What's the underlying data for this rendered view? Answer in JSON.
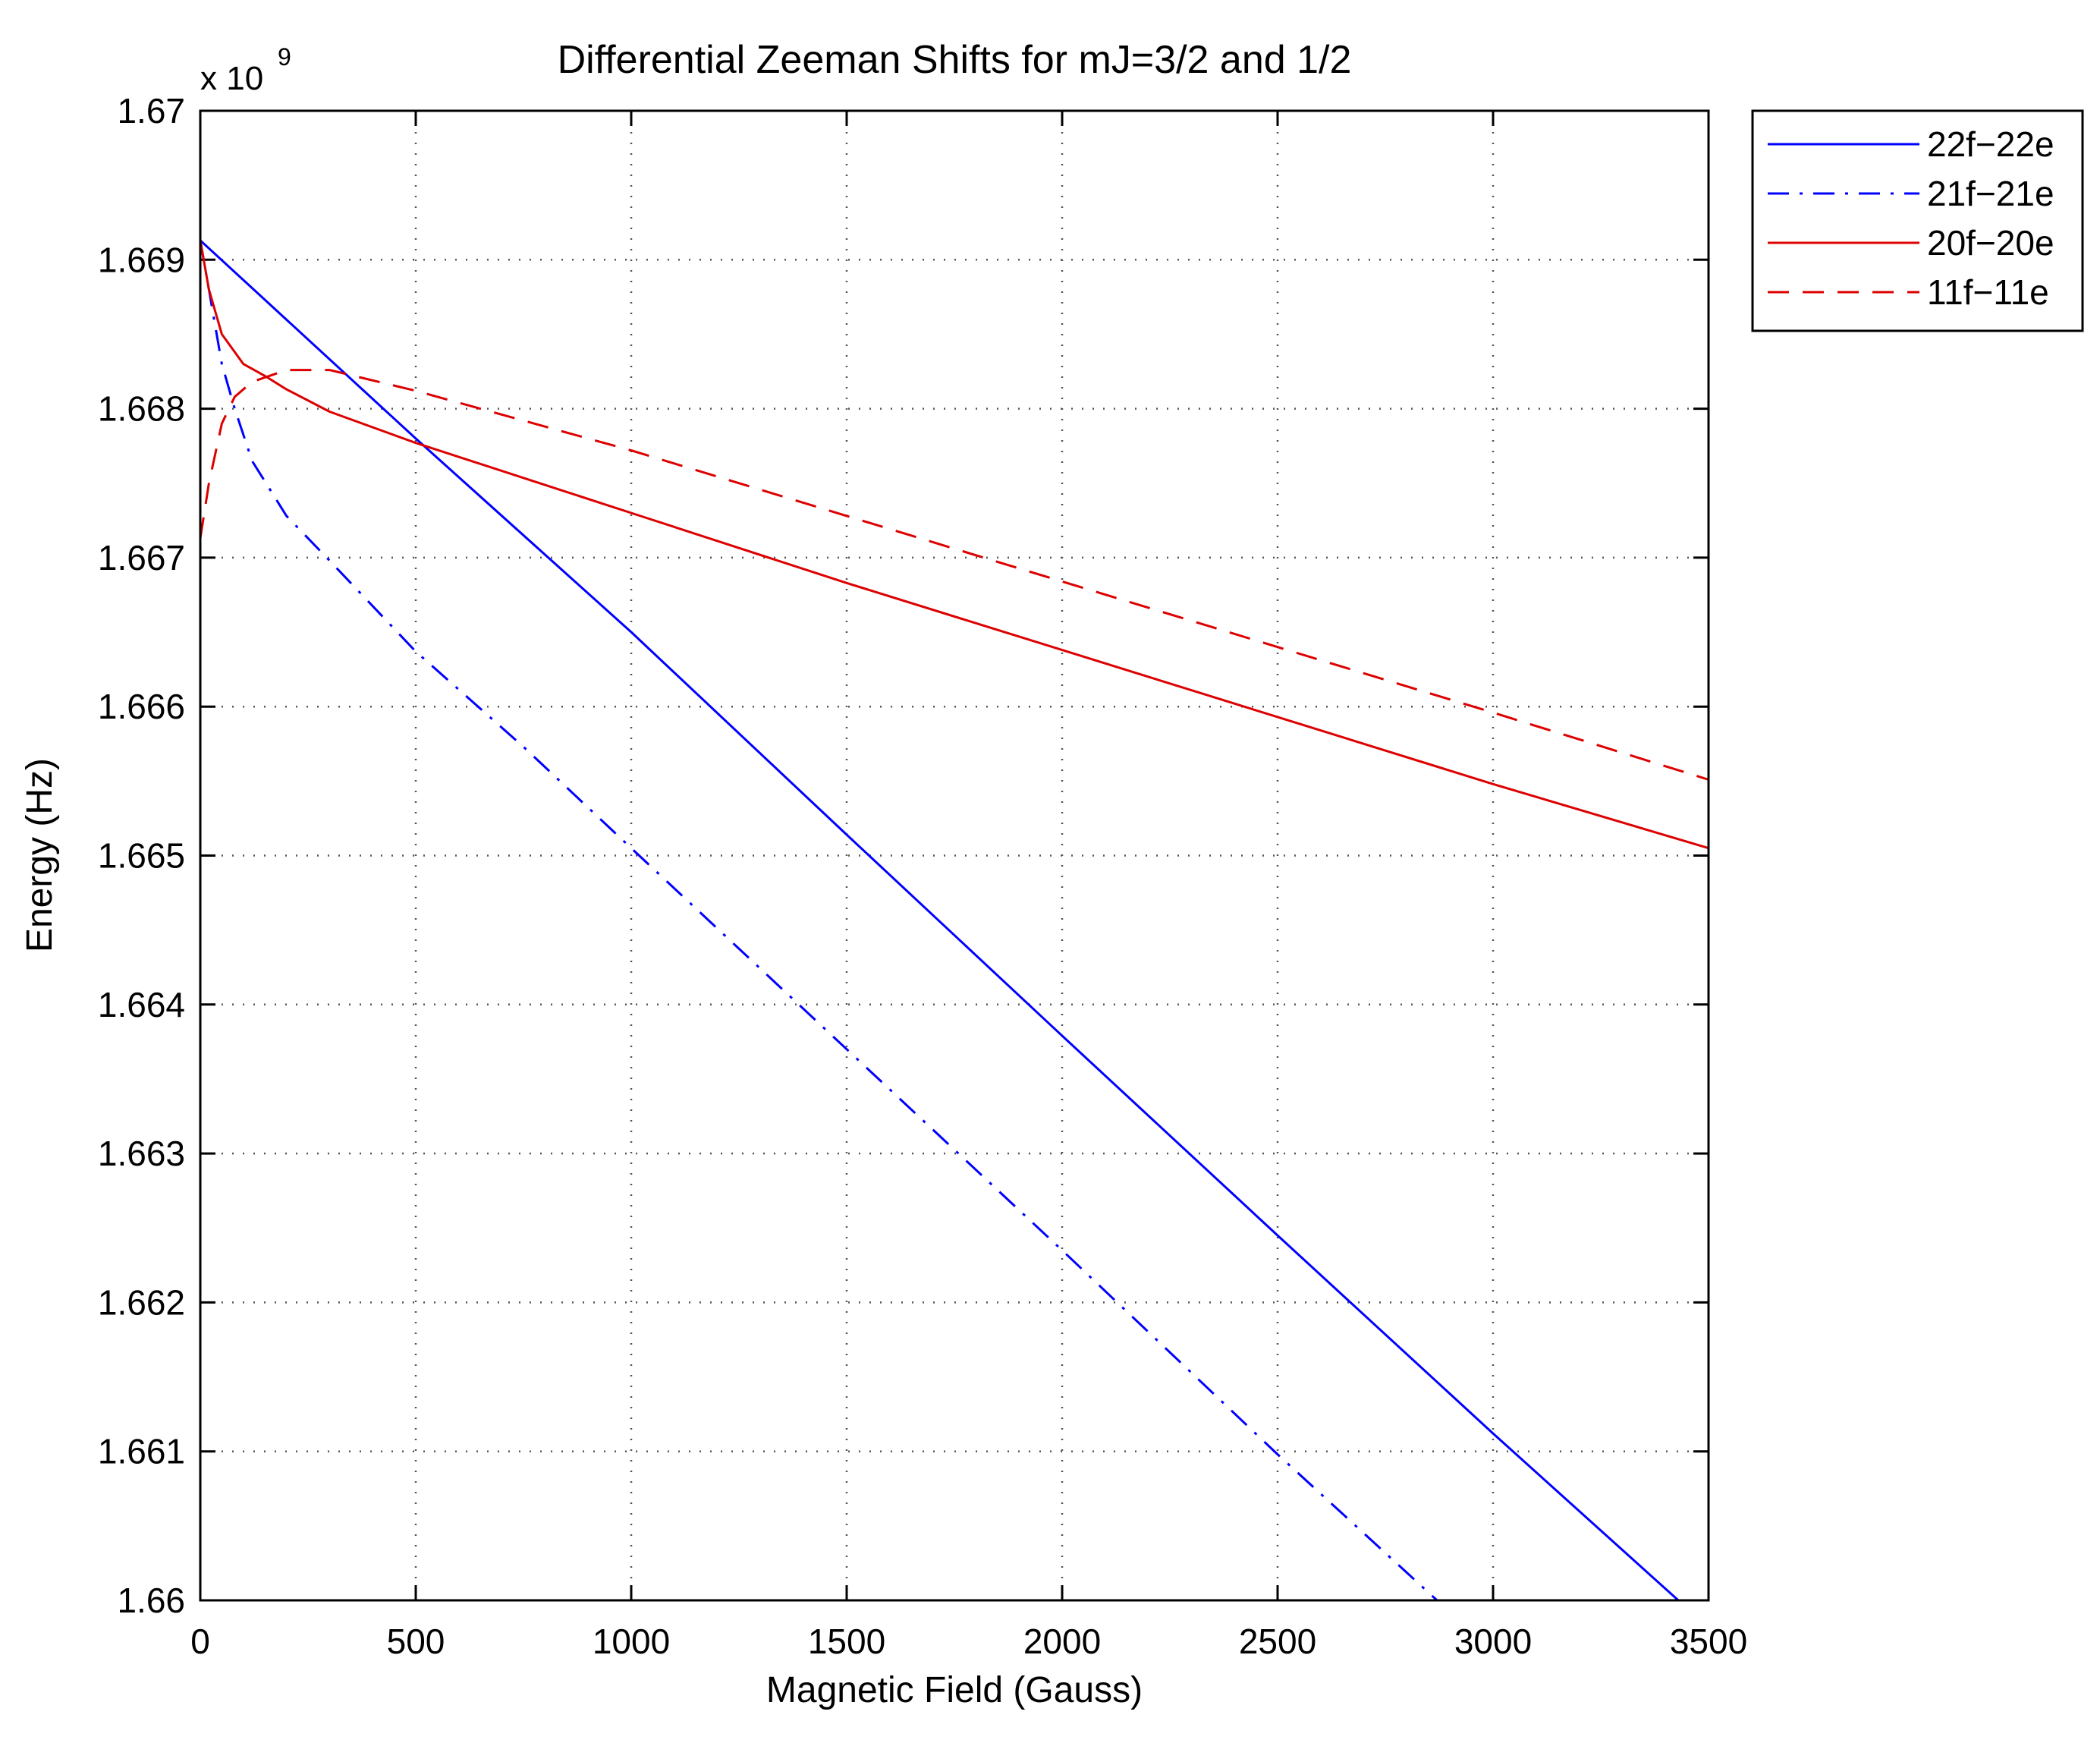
{
  "chart_data": {
    "type": "line",
    "title": "Differential Zeeman Shifts for mJ=3/2 and 1/2",
    "xlabel": "Magnetic Field (Gauss)",
    "ylabel": "Energy (Hz)",
    "y_multiplier_label": "x 10",
    "y_multiplier_exponent": "9",
    "xlim": [
      0,
      3500
    ],
    "ylim": [
      1.66,
      1.67
    ],
    "x_ticks": [
      0,
      500,
      1000,
      1500,
      2000,
      2500,
      3000,
      3500
    ],
    "x_tick_labels": [
      "0",
      "500",
      "1000",
      "1500",
      "2000",
      "2500",
      "3000",
      "3500"
    ],
    "y_ticks": [
      1.66,
      1.661,
      1.662,
      1.663,
      1.664,
      1.665,
      1.666,
      1.667,
      1.668,
      1.669,
      1.67
    ],
    "y_tick_labels": [
      "1.66",
      "1.661",
      "1.662",
      "1.663",
      "1.664",
      "1.665",
      "1.666",
      "1.667",
      "1.668",
      "1.669",
      "1.67"
    ],
    "grid": true,
    "legend_position": "outside top-right",
    "series": [
      {
        "name": "22f−22e",
        "color": "#0000ff",
        "style": "solid",
        "x": [
          0,
          500,
          1000,
          1500,
          2000,
          2500,
          3000,
          3430
        ],
        "y": [
          1.66913,
          1.6678,
          1.6665,
          1.66514,
          1.66379,
          1.66245,
          1.66112,
          1.66
        ]
      },
      {
        "name": "21f−21e",
        "color": "#0000ff",
        "style": "dashdot",
        "x": [
          0,
          20,
          50,
          80,
          120,
          200,
          300,
          500,
          750,
          1000,
          1500,
          2000,
          2500,
          2870
        ],
        "y": [
          1.66913,
          1.6688,
          1.6683,
          1.668,
          1.66765,
          1.66728,
          1.66698,
          1.66637,
          1.66573,
          1.66505,
          1.6637,
          1.66235,
          1.66098,
          1.66
        ]
      },
      {
        "name": "20f−20e",
        "color": "#dd0000",
        "style": "solid",
        "x": [
          0,
          20,
          50,
          100,
          150,
          200,
          300,
          500,
          1000,
          1500,
          2000,
          2500,
          3000,
          3500
        ],
        "y": [
          1.66913,
          1.6688,
          1.6685,
          1.6683,
          1.66822,
          1.66813,
          1.66798,
          1.66777,
          1.6673,
          1.66683,
          1.66638,
          1.66593,
          1.66548,
          1.66505
        ]
      },
      {
        "name": "11f−11e",
        "color": "#dd0000",
        "style": "dashed",
        "x": [
          0,
          20,
          50,
          80,
          120,
          200,
          300,
          500,
          1000,
          1500,
          2000,
          2500,
          3000,
          3500
        ],
        "y": [
          1.66713,
          1.6675,
          1.6679,
          1.66808,
          1.66818,
          1.66826,
          1.66826,
          1.66812,
          1.66772,
          1.66728,
          1.66684,
          1.6664,
          1.66596,
          1.66551
        ]
      }
    ]
  }
}
